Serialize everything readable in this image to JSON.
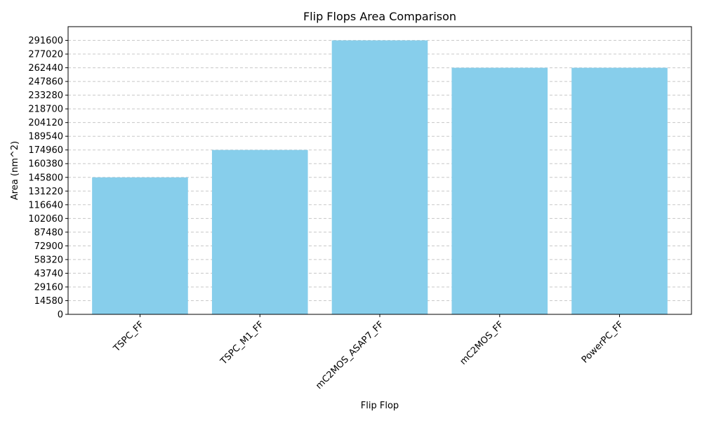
{
  "chart_data": {
    "type": "bar",
    "title": "Flip Flops Area Comparison",
    "xlabel": "Flip Flop",
    "ylabel": "Area (nm^2)",
    "categories": [
      "TSPC_FF",
      "TSPC_M1_FF",
      "mC2MOS_ASAP7_FF",
      "mC2MOS_FF",
      "PowerPC_FF"
    ],
    "values": [
      145800,
      174960,
      291600,
      262440,
      262440
    ],
    "yticks": [
      0,
      14580,
      29160,
      43740,
      58320,
      72900,
      87480,
      102060,
      116640,
      131220,
      145800,
      160380,
      174960,
      189540,
      204120,
      218700,
      233280,
      247860,
      262440,
      277020,
      291600
    ],
    "ylim": [
      0,
      306180
    ],
    "grid": true,
    "bar_color": "#87ceeb"
  }
}
